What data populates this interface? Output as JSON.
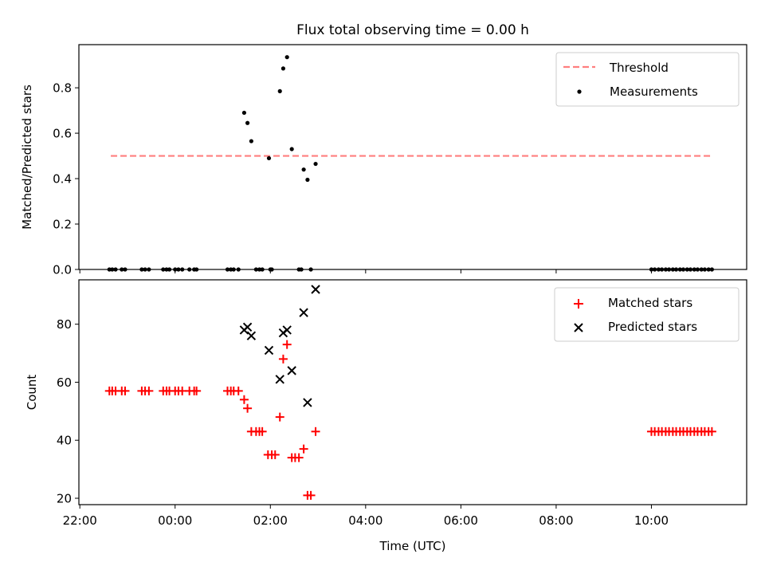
{
  "chart_data": [
    {
      "type": "scatter",
      "title": "Flux total observing time = 0.00 h",
      "xlabel": "",
      "ylabel": "Matched/Predicted stars",
      "x_unit": "hours since 22:00 UTC",
      "xlim": [
        -0.02,
        14.0
      ],
      "ylim": [
        0,
        0.99
      ],
      "yticks": [
        0.0,
        0.2,
        0.4,
        0.6,
        0.8
      ],
      "ytick_labels": [
        "0.0",
        "0.2",
        "0.4",
        "0.6",
        "0.8"
      ],
      "legend_position": "upper right",
      "legend": [
        "Threshold",
        "Measurements"
      ],
      "threshold": {
        "name": "Threshold",
        "y": 0.5,
        "x_range": [
          0.65,
          13.27
        ],
        "color": "#ff7f7f",
        "style": "dashed"
      },
      "series": [
        {
          "name": "Measurements",
          "marker": "dot",
          "color": "#000000",
          "points": [
            [
              0.62,
              0
            ],
            [
              0.68,
              0
            ],
            [
              0.75,
              0
            ],
            [
              0.88,
              0
            ],
            [
              0.95,
              0
            ],
            [
              1.3,
              0
            ],
            [
              1.37,
              0
            ],
            [
              1.45,
              0
            ],
            [
              1.75,
              0
            ],
            [
              1.82,
              0
            ],
            [
              1.88,
              0
            ],
            [
              2.0,
              0
            ],
            [
              2.07,
              0
            ],
            [
              2.15,
              0
            ],
            [
              2.3,
              0
            ],
            [
              2.4,
              0
            ],
            [
              2.45,
              0
            ],
            [
              3.1,
              0
            ],
            [
              3.17,
              0
            ],
            [
              3.23,
              0
            ],
            [
              3.33,
              0
            ],
            [
              3.7,
              0
            ],
            [
              3.77,
              0
            ],
            [
              3.83,
              0
            ],
            [
              4.0,
              0
            ],
            [
              4.03,
              0
            ],
            [
              4.6,
              0
            ],
            [
              4.65,
              0
            ],
            [
              4.85,
              0
            ],
            [
              3.45,
              0.69
            ],
            [
              3.52,
              0.645
            ],
            [
              3.6,
              0.565
            ],
            [
              3.97,
              0.49
            ],
            [
              4.2,
              0.785
            ],
            [
              4.27,
              0.885
            ],
            [
              4.35,
              0.935
            ],
            [
              4.45,
              0.53
            ],
            [
              4.7,
              0.44
            ],
            [
              4.78,
              0.395
            ],
            [
              4.95,
              0.465
            ],
            [
              12.0,
              0
            ],
            [
              12.07,
              0
            ],
            [
              12.15,
              0
            ],
            [
              12.22,
              0
            ],
            [
              12.3,
              0
            ],
            [
              12.37,
              0
            ],
            [
              12.45,
              0
            ],
            [
              12.52,
              0
            ],
            [
              12.6,
              0
            ],
            [
              12.67,
              0
            ],
            [
              12.75,
              0
            ],
            [
              12.82,
              0
            ],
            [
              12.9,
              0
            ],
            [
              12.97,
              0
            ],
            [
              13.05,
              0
            ],
            [
              13.12,
              0
            ],
            [
              13.2,
              0
            ],
            [
              13.27,
              0
            ]
          ]
        }
      ]
    },
    {
      "type": "scatter",
      "title": "",
      "xlabel": "Time (UTC)",
      "ylabel": "Count",
      "x_unit": "hours since 22:00 UTC",
      "xlim": [
        -0.02,
        14.0
      ],
      "ylim": [
        17.8,
        95.3
      ],
      "xticks": [
        0,
        2,
        4,
        6,
        8,
        10,
        12
      ],
      "xtick_labels": [
        "22:00",
        "00:00",
        "02:00",
        "04:00",
        "06:00",
        "08:00",
        "10:00"
      ],
      "yticks": [
        20,
        40,
        60,
        80
      ],
      "ytick_labels": [
        "20",
        "40",
        "60",
        "80"
      ],
      "legend_position": "upper right",
      "legend": [
        "Matched stars",
        "Predicted stars"
      ],
      "series": [
        {
          "name": "Matched stars",
          "marker": "plus",
          "color": "#ff0000",
          "points": [
            [
              0.62,
              57
            ],
            [
              0.68,
              57
            ],
            [
              0.75,
              57
            ],
            [
              0.88,
              57
            ],
            [
              0.95,
              57
            ],
            [
              1.3,
              57
            ],
            [
              1.37,
              57
            ],
            [
              1.45,
              57
            ],
            [
              1.75,
              57
            ],
            [
              1.82,
              57
            ],
            [
              1.88,
              57
            ],
            [
              2.0,
              57
            ],
            [
              2.07,
              57
            ],
            [
              2.15,
              57
            ],
            [
              2.3,
              57
            ],
            [
              2.4,
              57
            ],
            [
              2.45,
              57
            ],
            [
              3.1,
              57
            ],
            [
              3.17,
              57
            ],
            [
              3.23,
              57
            ],
            [
              3.33,
              57
            ],
            [
              3.45,
              54
            ],
            [
              3.52,
              51
            ],
            [
              3.6,
              43
            ],
            [
              3.7,
              43
            ],
            [
              3.77,
              43
            ],
            [
              3.83,
              43
            ],
            [
              3.95,
              35
            ],
            [
              4.03,
              35
            ],
            [
              4.1,
              35
            ],
            [
              4.2,
              48
            ],
            [
              4.27,
              68
            ],
            [
              4.35,
              73
            ],
            [
              4.45,
              34
            ],
            [
              4.52,
              34
            ],
            [
              4.6,
              34
            ],
            [
              4.7,
              37
            ],
            [
              4.78,
              21
            ],
            [
              4.85,
              21
            ],
            [
              4.95,
              43
            ],
            [
              12.0,
              43
            ],
            [
              12.07,
              43
            ],
            [
              12.15,
              43
            ],
            [
              12.22,
              43
            ],
            [
              12.3,
              43
            ],
            [
              12.37,
              43
            ],
            [
              12.45,
              43
            ],
            [
              12.52,
              43
            ],
            [
              12.6,
              43
            ],
            [
              12.67,
              43
            ],
            [
              12.75,
              43
            ],
            [
              12.82,
              43
            ],
            [
              12.9,
              43
            ],
            [
              12.97,
              43
            ],
            [
              13.05,
              43
            ],
            [
              13.12,
              43
            ],
            [
              13.2,
              43
            ],
            [
              13.27,
              43
            ]
          ]
        },
        {
          "name": "Predicted stars",
          "marker": "x",
          "color": "#000000",
          "points": [
            [
              3.45,
              78
            ],
            [
              3.52,
              79
            ],
            [
              3.6,
              76
            ],
            [
              3.97,
              71
            ],
            [
              4.2,
              61
            ],
            [
              4.27,
              77
            ],
            [
              4.35,
              78
            ],
            [
              4.45,
              64
            ],
            [
              4.7,
              84
            ],
            [
              4.78,
              53
            ],
            [
              4.95,
              92
            ]
          ]
        }
      ]
    }
  ]
}
